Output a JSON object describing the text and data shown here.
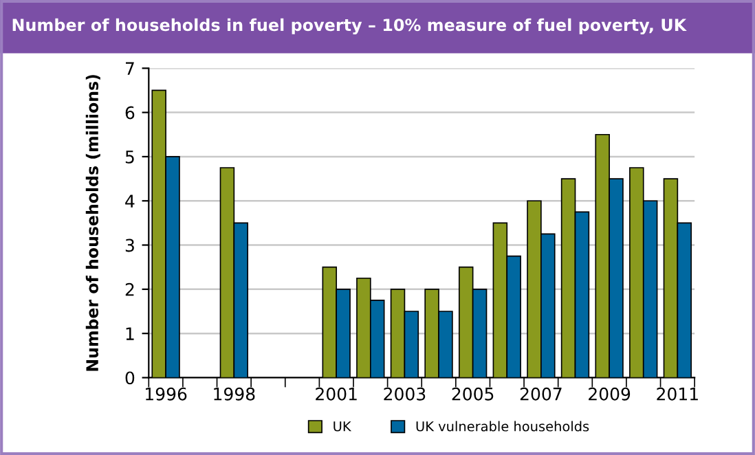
{
  "chart_data": {
    "type": "bar",
    "title": "Number of households in fuel poverty – 10% measure of fuel poverty, UK",
    "ylabel": "Number of households (millions)",
    "categories": [
      "1996",
      null,
      "1998",
      null,
      null,
      "2001",
      null,
      "2003",
      null,
      "2005",
      null,
      "2007",
      null,
      "2009",
      null,
      "2011"
    ],
    "series": [
      {
        "name": "UK",
        "color": "#8a9a1e",
        "values": [
          6.5,
          null,
          4.75,
          null,
          null,
          2.5,
          2.25,
          2,
          2,
          2.5,
          3.5,
          4,
          4.5,
          5.5,
          4.75,
          4.5
        ]
      },
      {
        "name": "UK vulnerable households",
        "color": "#0068a0",
        "values": [
          5,
          null,
          3.5,
          null,
          null,
          2,
          1.75,
          1.5,
          1.5,
          2,
          2.75,
          3.25,
          3.75,
          4.5,
          4,
          3.5
        ]
      }
    ],
    "ylim": [
      0,
      7
    ],
    "yticks": [
      0,
      1,
      2,
      3,
      4,
      5,
      6,
      7
    ],
    "grid": "y",
    "legend": "bottom"
  }
}
